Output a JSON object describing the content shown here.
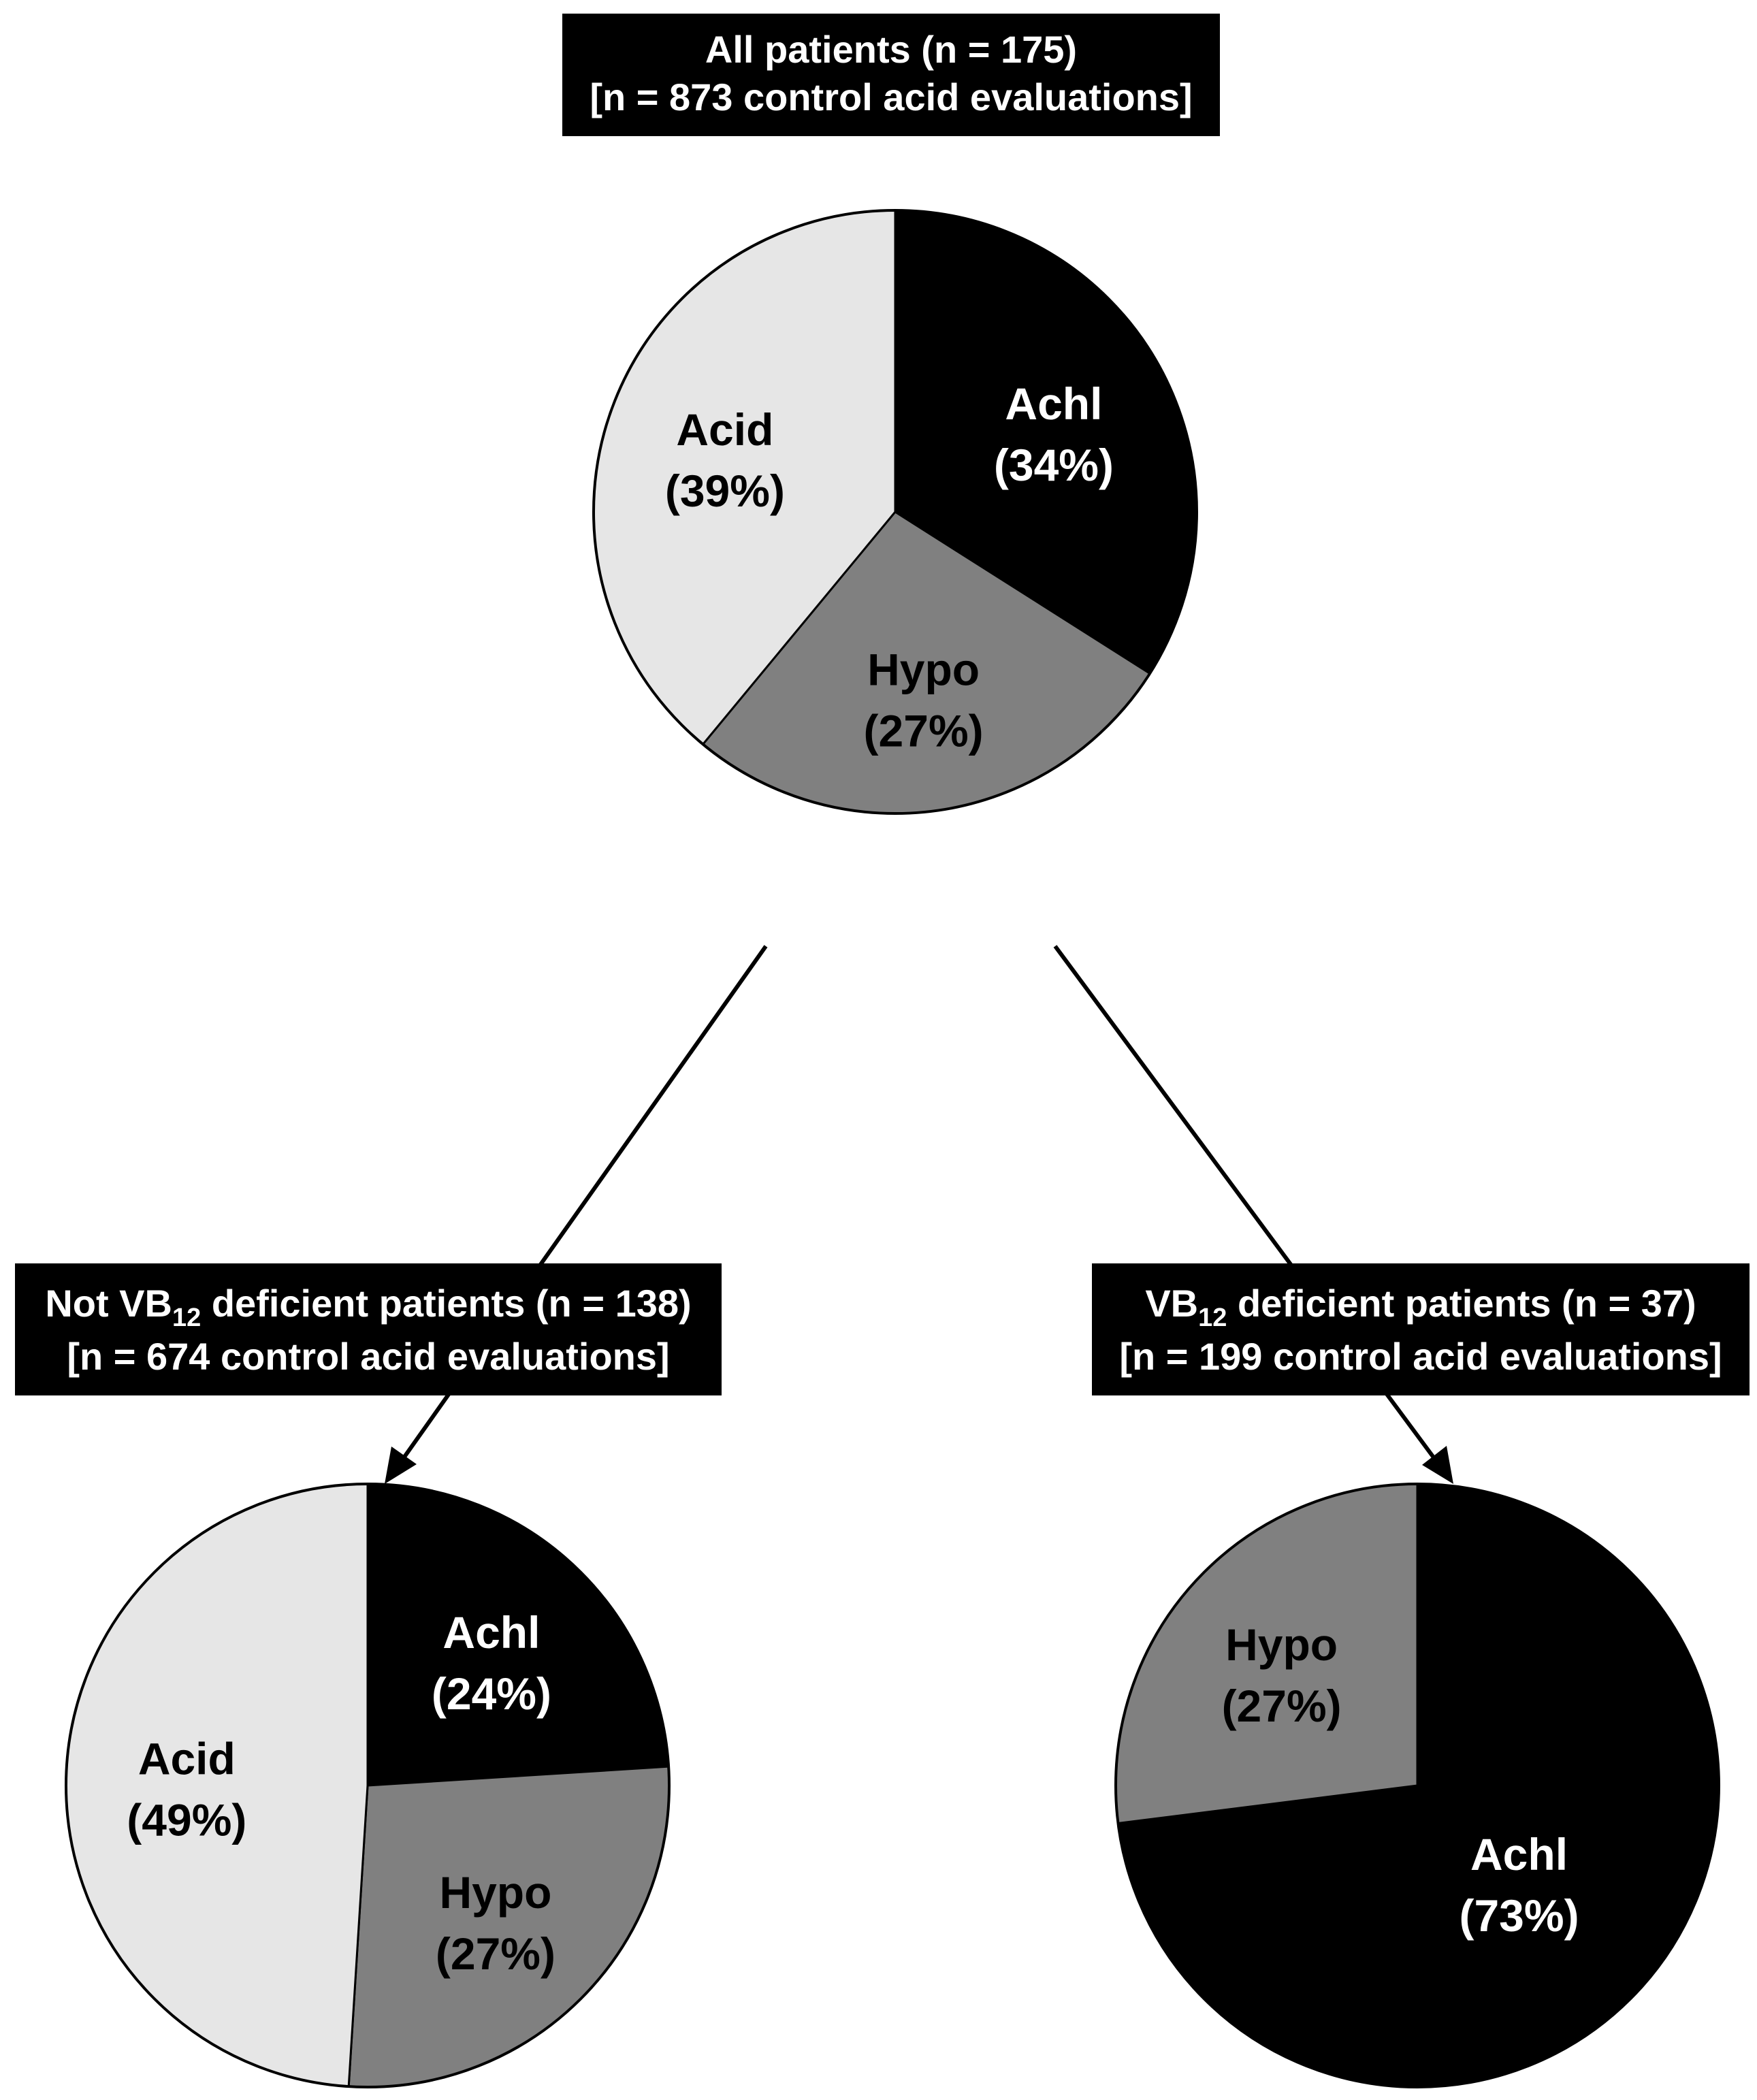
{
  "colors": {
    "achl": "#000000",
    "hypo": "#808080",
    "acid": "#e6e6e6",
    "outline": "#000000"
  },
  "chart_data": [
    {
      "type": "pie",
      "title": "All patients (n = 175)",
      "subtitle": "[n = 873 control acid evaluations]",
      "slices": [
        {
          "label": "Achl",
          "pct_text": "(34%)",
          "value": 34
        },
        {
          "label": "Hypo",
          "pct_text": "(27%)",
          "value": 27
        },
        {
          "label": "Acid",
          "pct_text": "(39%)",
          "value": 39
        }
      ]
    },
    {
      "type": "pie",
      "title_prefix": "Not VB",
      "title_sub": "12",
      "title_suffix": " deficient patients (n = 138)",
      "subtitle": "[n = 674 control acid evaluations]",
      "slices": [
        {
          "label": "Achl",
          "pct_text": "(24%)",
          "value": 24
        },
        {
          "label": "Hypo",
          "pct_text": "(27%)",
          "value": 27
        },
        {
          "label": "Acid",
          "pct_text": "(49%)",
          "value": 49
        }
      ]
    },
    {
      "type": "pie",
      "title_prefix": "VB",
      "title_sub": "12",
      "title_suffix": " deficient patients (n = 37)",
      "subtitle": "[n = 199 control acid evaluations]",
      "slices": [
        {
          "label": "Achl",
          "pct_text": "(73%)",
          "value": 73
        },
        {
          "label": "Hypo",
          "pct_text": "(27%)",
          "value": 27
        }
      ]
    }
  ]
}
